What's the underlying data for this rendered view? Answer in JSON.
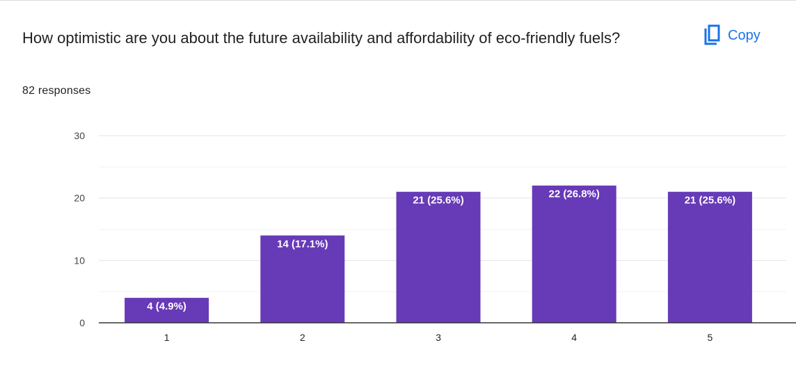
{
  "question": {
    "title": "How optimistic are you about the future availability and affordability of eco-friendly fuels?",
    "responses": "82 responses"
  },
  "toolbar": {
    "copy_label": "Copy",
    "copy_icon": "copy-icon"
  },
  "colors": {
    "bar": "#673ab7",
    "accent": "#1a73e8",
    "gridline": "#ebebeb",
    "axis": "#333333"
  },
  "chart_data": {
    "type": "bar",
    "categories": [
      "1",
      "2",
      "3",
      "4",
      "5"
    ],
    "values": [
      4,
      14,
      21,
      22,
      21
    ],
    "data_labels": [
      "4 (4.9%)",
      "14 (17.1%)",
      "21 (25.6%)",
      "22 (26.8%)",
      "21 (25.6%)"
    ],
    "yticks": [
      "0",
      "10",
      "20",
      "30"
    ],
    "ylim": [
      0,
      30
    ],
    "grid": true,
    "legend": "none"
  }
}
